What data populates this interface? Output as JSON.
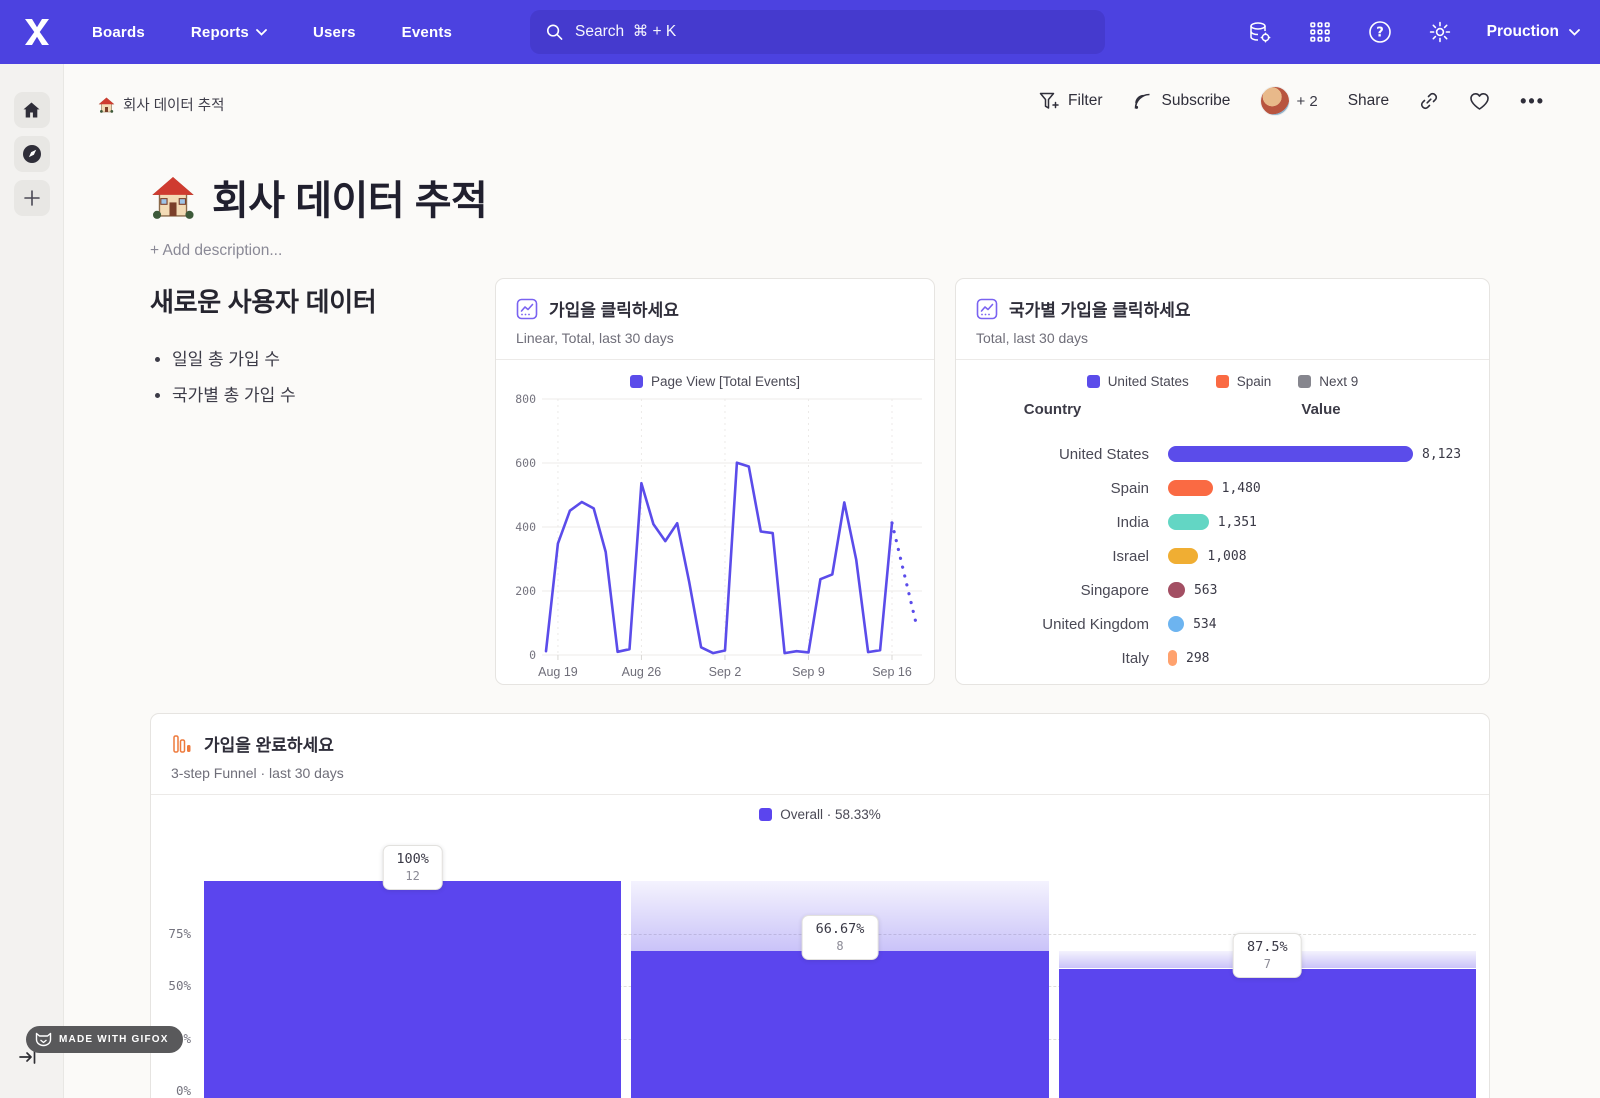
{
  "nav": {
    "logo_name": "mixpanel-logo",
    "items": [
      {
        "label": "Boards",
        "caret": false
      },
      {
        "label": "Reports",
        "caret": true
      },
      {
        "label": "Users",
        "caret": false
      },
      {
        "label": "Events",
        "caret": false
      }
    ],
    "search_placeholder": "Search  ⌘ + K",
    "project_label": "Prouction"
  },
  "breadcrumb": {
    "title": "회사 데이터 추적"
  },
  "toolbar": {
    "filter_label": "Filter",
    "subscribe_label": "Subscribe",
    "collaborators_extra": "+ 2",
    "share_label": "Share"
  },
  "page": {
    "title": "회사 데이터 추적",
    "description_placeholder": "+ Add description..."
  },
  "text_card": {
    "heading": "새로운 사용자 데이터",
    "bullets": [
      "일일 총 가입 수",
      "국가별 총 가입 수"
    ]
  },
  "colors": {
    "nav_purple": "#4c42e0",
    "chart_purple": "#5b4cea",
    "funnel_purple": "#5b45ee"
  },
  "chart_data": [
    {
      "id": "signups_line",
      "type": "line",
      "title": "가입을 클릭하세요",
      "subtitle": "Linear, Total, last 30 days",
      "legend_label": "Page View [Total Events]",
      "line_color": "#5b4cea",
      "ylim": [
        0,
        800
      ],
      "y_ticks": [
        0,
        200,
        400,
        600,
        800
      ],
      "x_tick_labels": [
        "Aug 19",
        "Aug 26",
        "Sep 2",
        "Sep 9",
        "Sep 16"
      ],
      "x_tick_indices": [
        1,
        8,
        15,
        22,
        29
      ],
      "values": [
        12,
        348,
        451,
        478,
        458,
        322,
        10,
        18,
        537,
        409,
        356,
        412,
        228,
        24,
        6,
        14,
        601,
        589,
        386,
        381,
        6,
        12,
        8,
        237,
        252,
        477,
        298,
        9,
        15,
        413
      ],
      "dotted_tail_end_value": 100
    },
    {
      "id": "signups_by_country",
      "type": "bar",
      "title": "국가별 가입을 클릭하세요",
      "subtitle": "Total, last 30 days",
      "legend": [
        {
          "label": "United States",
          "color": "#5b4cea"
        },
        {
          "label": "Spain",
          "color": "#fa6a43"
        },
        {
          "label": "Next 9",
          "color": "#86868e"
        }
      ],
      "columns": [
        "Country",
        "Value"
      ],
      "max": 8123,
      "rows": [
        {
          "label": "United States",
          "value": "8,123",
          "num": 8123,
          "color": "#5b4cea"
        },
        {
          "label": "Spain",
          "value": "1,480",
          "num": 1480,
          "color": "#fa6a43"
        },
        {
          "label": "India",
          "value": "1,351",
          "num": 1351,
          "color": "#63d6c4"
        },
        {
          "label": "Israel",
          "value": "1,008",
          "num": 1008,
          "color": "#f0ae33"
        },
        {
          "label": "Singapore",
          "value": "563",
          "num": 563,
          "color": "#a34f63"
        },
        {
          "label": "United Kingdom",
          "value": "534",
          "num": 534,
          "color": "#6db4f0"
        },
        {
          "label": "Italy",
          "value": "298",
          "num": 298,
          "color": "#ffa26e"
        }
      ],
      "clipped_row_color": "#4a5ec0"
    },
    {
      "id": "signup_funnel",
      "type": "funnel",
      "title": "가입을 완료하세요",
      "subtitle": "3-step Funnel · last 30 days",
      "legend_label": "Overall · 58.33%",
      "bar_color": "#5b45ee",
      "y_tick_labels": [
        "75%",
        "50%",
        "25%",
        "0%"
      ],
      "steps": [
        {
          "conversion": "100%",
          "count": "12",
          "overall_pct": 100,
          "prev_pct": 100
        },
        {
          "conversion": "66.67%",
          "count": "8",
          "overall_pct": 66.67,
          "prev_pct": 100
        },
        {
          "conversion": "87.5%",
          "count": "7",
          "overall_pct": 58.33,
          "prev_pct": 66.67
        }
      ]
    }
  ],
  "badges": {
    "gifox": "MADE WITH GIFOX"
  }
}
